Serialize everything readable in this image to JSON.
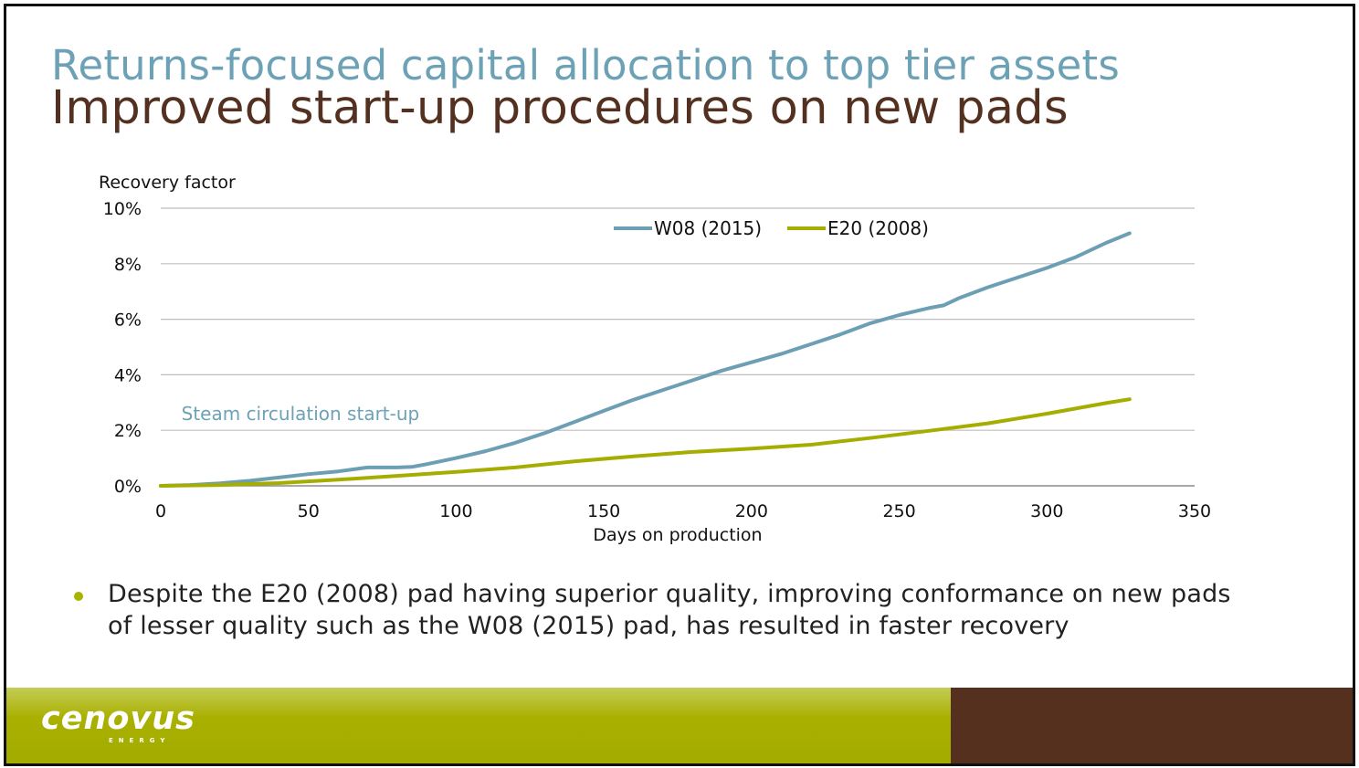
{
  "slide": {
    "title": "Returns-focused capital allocation to top tier assets",
    "subtitle": "Improved start-up procedures on new pads",
    "bullet": "Despite the E20 (2008) pad having superior quality, improving conformance on new pads of lesser quality such as the W08 (2015) pad, has resulted in faster recovery",
    "logo": "cenovus",
    "logo_sub": "ENERGY",
    "colors": {
      "title": "#6da2b6",
      "subtitle": "#53301f",
      "bullet_dot": "#a8b400",
      "footer_green": "#a9b000",
      "footer_brown": "#55301f"
    }
  },
  "chart_data": {
    "type": "line",
    "ylabel": "Recovery factor",
    "xlabel": "Days on production",
    "xlim": [
      0,
      350
    ],
    "ylim": [
      0,
      10
    ],
    "xticks": [
      0,
      50,
      100,
      150,
      200,
      250,
      300,
      350
    ],
    "xtick_labels": [
      "0",
      "50",
      "100",
      "150",
      "200",
      "250",
      "300",
      "350"
    ],
    "yticks": [
      0,
      2,
      4,
      6,
      8,
      10
    ],
    "ytick_labels": [
      "0%",
      "2%",
      "4%",
      "6%",
      "8%",
      "10%"
    ],
    "grid": "horizontal",
    "legend_position": "top",
    "annotation": {
      "text": "Steam circulation start-up",
      "x": 7,
      "y": 2.6,
      "color": "#6da2b6"
    },
    "series": [
      {
        "name": "W08 (2015)",
        "color": "#6d9fb4",
        "x": [
          0,
          10,
          20,
          30,
          40,
          50,
          60,
          70,
          80,
          85,
          90,
          100,
          110,
          120,
          130,
          140,
          150,
          160,
          170,
          180,
          190,
          200,
          210,
          220,
          230,
          240,
          250,
          260,
          265,
          270,
          280,
          290,
          300,
          310,
          320,
          328
        ],
        "y": [
          0,
          0.03,
          0.09,
          0.18,
          0.3,
          0.42,
          0.52,
          0.66,
          0.66,
          0.68,
          0.78,
          1.0,
          1.25,
          1.55,
          1.9,
          2.3,
          2.7,
          3.1,
          3.45,
          3.8,
          4.15,
          4.45,
          4.75,
          5.1,
          5.45,
          5.85,
          6.15,
          6.4,
          6.5,
          6.75,
          7.15,
          7.5,
          7.85,
          8.25,
          8.75,
          9.1
        ]
      },
      {
        "name": "E20 (2008)",
        "color": "#a5ae00",
        "x": [
          0,
          20,
          40,
          60,
          80,
          100,
          120,
          140,
          160,
          180,
          200,
          220,
          240,
          260,
          280,
          300,
          320,
          328
        ],
        "y": [
          0,
          0.03,
          0.1,
          0.22,
          0.36,
          0.5,
          0.66,
          0.88,
          1.06,
          1.22,
          1.34,
          1.48,
          1.72,
          1.98,
          2.25,
          2.6,
          2.98,
          3.12
        ]
      }
    ]
  }
}
